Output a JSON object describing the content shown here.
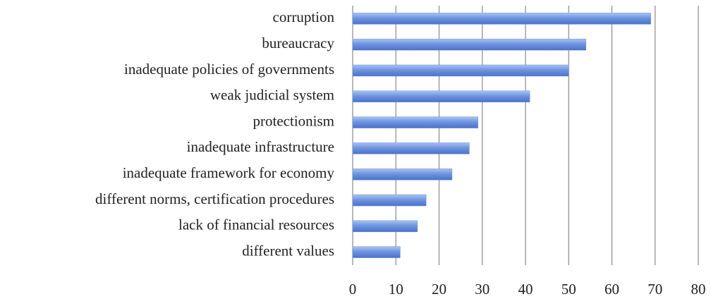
{
  "chart_data": {
    "type": "barh",
    "categories": [
      "corruption",
      "bureaucracy",
      "inadequate policies of governments",
      "weak judicial system",
      "protectionism",
      "inadequate infrastructure",
      "inadequate framework for economy",
      "different norms, certification procedures",
      "lack of financial resources",
      "different values"
    ],
    "values": [
      69,
      54,
      50,
      41,
      29,
      27,
      23,
      17,
      15,
      11
    ],
    "color": "#6f95e0",
    "xlim": [
      0,
      80
    ],
    "xticks": [
      0,
      10,
      20,
      30,
      40,
      50,
      60,
      70,
      80
    ],
    "grid": true
  }
}
